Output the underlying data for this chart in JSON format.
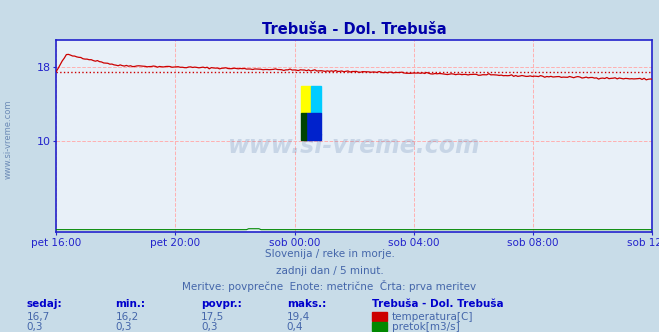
{
  "title": "Trebuša - Dol. Trebuša",
  "bg_color": "#c8dce8",
  "plot_bg_color": "#e8f0f8",
  "grid_color": "#ffb0b0",
  "border_color": "#2222cc",
  "tick_color": "#2222cc",
  "xlabel_color": "#4466aa",
  "ylabel_color": "#4466aa",
  "title_color": "#0000aa",
  "text_color": "#4466aa",
  "watermark": "www.si-vreme.com",
  "subtitle1": "Slovenija / reke in morje.",
  "subtitle2": "zadnji dan / 5 minut.",
  "subtitle3": "Meritve: povprečne  Enote: metrične  Črta: prva meritev",
  "xlabels": [
    "pet 16:00",
    "pet 20:00",
    "sob 00:00",
    "sob 04:00",
    "sob 08:00",
    "sob 12:00"
  ],
  "xticks_norm": [
    0.0,
    0.2,
    0.4,
    0.6,
    0.8,
    1.0
  ],
  "ylim": [
    0,
    21
  ],
  "ytick_vals": [
    10,
    18
  ],
  "ytick_labels": [
    "10",
    "18"
  ],
  "temp_avg": 17.5,
  "temp_color": "#cc0000",
  "flow_color": "#008800",
  "header_color": "#0000cc",
  "value_color": "#4466aa",
  "sedaj_label": "sedaj:",
  "min_label": "min.:",
  "povpr_label": "povpr.:",
  "maks_label": "maks.:",
  "station_label": "Trebuša - Dol. Trebuša",
  "temp_sedaj": "16,7",
  "temp_min": "16,2",
  "temp_povpr": "17,5",
  "temp_maks": "19,4",
  "flow_sedaj": "0,3",
  "flow_min": "0,3",
  "flow_povpr": "0,3",
  "flow_maks": "0,4",
  "temp_legend": "temperatura[C]",
  "flow_legend": "pretok[m3/s]"
}
